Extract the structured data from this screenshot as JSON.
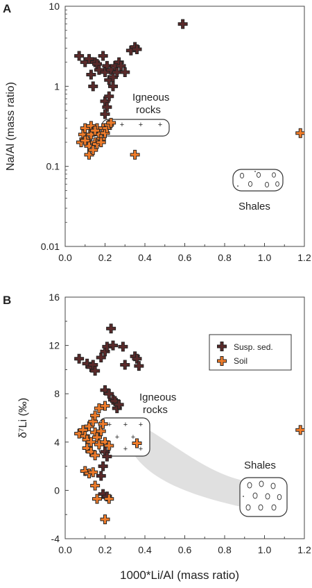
{
  "chart_data": [
    {
      "type": "scatter",
      "panel_label": "A",
      "ylabel": "Na/Al (mass ratio)",
      "xlabel": "",
      "xlim": [
        0,
        1.2
      ],
      "ylim": [
        0.01,
        10
      ],
      "yscale": "log",
      "x_ticks": [
        "0.0",
        "0.2",
        "0.4",
        "0.6",
        "0.8",
        "1.0",
        "1.2"
      ],
      "y_ticks": [
        "0.01",
        "0.1",
        "1",
        "10"
      ],
      "grid": false,
      "annotations": [
        "Igneous",
        "rocks",
        "Shales"
      ],
      "series": [
        {
          "name": "Susp. sed.",
          "color": "#5a2a2a",
          "points": [
            [
              0.07,
              2.4
            ],
            [
              0.1,
              2.0
            ],
            [
              0.12,
              2.2
            ],
            [
              0.13,
              1.4
            ],
            [
              0.14,
              1.0
            ],
            [
              0.15,
              2.0
            ],
            [
              0.16,
              1.9
            ],
            [
              0.17,
              1.6
            ],
            [
              0.19,
              2.4
            ],
            [
              0.2,
              1.5
            ],
            [
              0.21,
              1.8
            ],
            [
              0.22,
              1.2
            ],
            [
              0.23,
              1.6
            ],
            [
              0.24,
              1.3
            ],
            [
              0.25,
              1.8
            ],
            [
              0.26,
              1.5
            ],
            [
              0.27,
              2.0
            ],
            [
              0.24,
              1.0
            ],
            [
              0.28,
              1.8
            ],
            [
              0.3,
              1.5
            ],
            [
              0.33,
              2.8
            ],
            [
              0.35,
              3.1
            ],
            [
              0.36,
              2.9
            ],
            [
              0.2,
              0.65
            ],
            [
              0.21,
              0.55
            ],
            [
              0.22,
              0.75
            ],
            [
              0.2,
              0.45
            ],
            [
              0.59,
              6.0
            ]
          ]
        },
        {
          "name": "Soil",
          "color": "#f07c2a",
          "points": [
            [
              0.08,
              0.2
            ],
            [
              0.09,
              0.25
            ],
            [
              0.1,
              0.3
            ],
            [
              0.11,
              0.22
            ],
            [
              0.12,
              0.18
            ],
            [
              0.13,
              0.32
            ],
            [
              0.14,
              0.27
            ],
            [
              0.15,
              0.2
            ],
            [
              0.16,
              0.3
            ],
            [
              0.17,
              0.25
            ],
            [
              0.18,
              0.22
            ],
            [
              0.19,
              0.3
            ],
            [
              0.2,
              0.26
            ],
            [
              0.21,
              0.3
            ],
            [
              0.22,
              0.33
            ],
            [
              0.23,
              0.35
            ],
            [
              0.12,
              0.14
            ],
            [
              0.14,
              0.16
            ],
            [
              0.16,
              0.19
            ],
            [
              0.18,
              0.2
            ],
            [
              0.1,
              0.21
            ],
            [
              0.13,
              0.25
            ],
            [
              0.15,
              0.28
            ],
            [
              0.35,
              0.14
            ],
            [
              1.18,
              0.26
            ]
          ]
        }
      ]
    },
    {
      "type": "scatter",
      "panel_label": "B",
      "ylabel": "δ⁷Li (‰)",
      "xlabel": "1000*Li/Al (mass ratio)",
      "xlim": [
        0,
        1.2
      ],
      "ylim": [
        -4,
        16
      ],
      "x_ticks": [
        "0.0",
        "0.2",
        "0.4",
        "0.6",
        "0.8",
        "1.0",
        "1.2"
      ],
      "y_ticks": [
        "-4",
        "0",
        "4",
        "8",
        "12",
        "16"
      ],
      "grid": false,
      "legend": {
        "placement": "top-right",
        "entries": [
          "Susp. sed.",
          "Soil"
        ]
      },
      "annotations": [
        "Igneous",
        "rocks",
        "Shales"
      ],
      "series": [
        {
          "name": "Susp. sed.",
          "color": "#5a2a2a",
          "points": [
            [
              0.07,
              10.9
            ],
            [
              0.11,
              10.5
            ],
            [
              0.13,
              10.2
            ],
            [
              0.14,
              10.4
            ],
            [
              0.15,
              9.9
            ],
            [
              0.18,
              11.0
            ],
            [
              0.2,
              11.5
            ],
            [
              0.21,
              11.9
            ],
            [
              0.23,
              13.4
            ],
            [
              0.24,
              12.0
            ],
            [
              0.29,
              11.9
            ],
            [
              0.3,
              10.4
            ],
            [
              0.35,
              11.1
            ],
            [
              0.36,
              10.9
            ],
            [
              0.37,
              10.3
            ],
            [
              0.2,
              8.3
            ],
            [
              0.22,
              8.0
            ],
            [
              0.24,
              7.5
            ],
            [
              0.25,
              7.4
            ],
            [
              0.26,
              6.8
            ],
            [
              0.27,
              7.1
            ],
            [
              0.2,
              3.2
            ],
            [
              0.21,
              2.8
            ],
            [
              0.19,
              2.0
            ],
            [
              0.18,
              1.2
            ],
            [
              0.19,
              -0.3
            ],
            [
              0.21,
              -0.5
            ]
          ]
        },
        {
          "name": "Soil",
          "color": "#f07c2a",
          "points": [
            [
              0.07,
              4.7
            ],
            [
              0.09,
              5.0
            ],
            [
              0.1,
              4.5
            ],
            [
              0.11,
              4.2
            ],
            [
              0.12,
              5.3
            ],
            [
              0.13,
              4.0
            ],
            [
              0.14,
              5.7
            ],
            [
              0.15,
              4.8
            ],
            [
              0.16,
              4.4
            ],
            [
              0.17,
              3.8
            ],
            [
              0.18,
              4.9
            ],
            [
              0.15,
              6.2
            ],
            [
              0.17,
              6.8
            ],
            [
              0.19,
              5.5
            ],
            [
              0.2,
              7.0
            ],
            [
              0.2,
              4.0
            ],
            [
              0.11,
              3.5
            ],
            [
              0.13,
              3.2
            ],
            [
              0.15,
              2.9
            ],
            [
              0.1,
              1.6
            ],
            [
              0.12,
              1.4
            ],
            [
              0.14,
              1.5
            ],
            [
              0.15,
              0.4
            ],
            [
              0.16,
              -0.7
            ],
            [
              0.22,
              -0.7
            ],
            [
              0.2,
              -2.4
            ],
            [
              0.22,
              3.7
            ],
            [
              0.36,
              3.9
            ],
            [
              1.18,
              5.0
            ]
          ]
        }
      ]
    }
  ]
}
